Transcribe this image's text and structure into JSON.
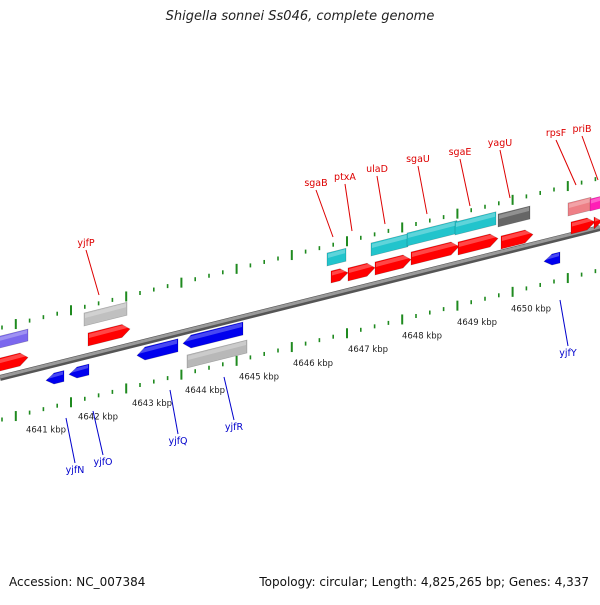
{
  "title": "Shigella sonnei Ss046, complete genome",
  "footer": {
    "accession": "Accession: NC_007384",
    "topology": "Topology: circular; Length: 4,825,265 bp; Genes: 4,337"
  },
  "colors": {
    "backbone": "#7f7f7f",
    "tick": "#1f8a1f",
    "forward_gene": "#ff0000",
    "reverse_gene": "#0000ee",
    "upper_label": "#dd0000",
    "lower_label": "#0000cc"
  },
  "scale_labels": [
    "4641 kbp",
    "4642 kbp",
    "4643 kbp",
    "4644 kbp",
    "4645 kbp",
    "4646 kbp",
    "4647 kbp",
    "4648 kbp",
    "4649 kbp",
    "4650 kbp"
  ],
  "upper_gene_labels": [
    "yjfP",
    "sgaB",
    "ptxA",
    "ulaD",
    "sgaU",
    "sgaE",
    "yagU",
    "rpsF",
    "priB"
  ],
  "lower_gene_labels": [
    "yjfN",
    "yjfO",
    "yjfQ",
    "yjfR",
    "yjfY"
  ]
}
